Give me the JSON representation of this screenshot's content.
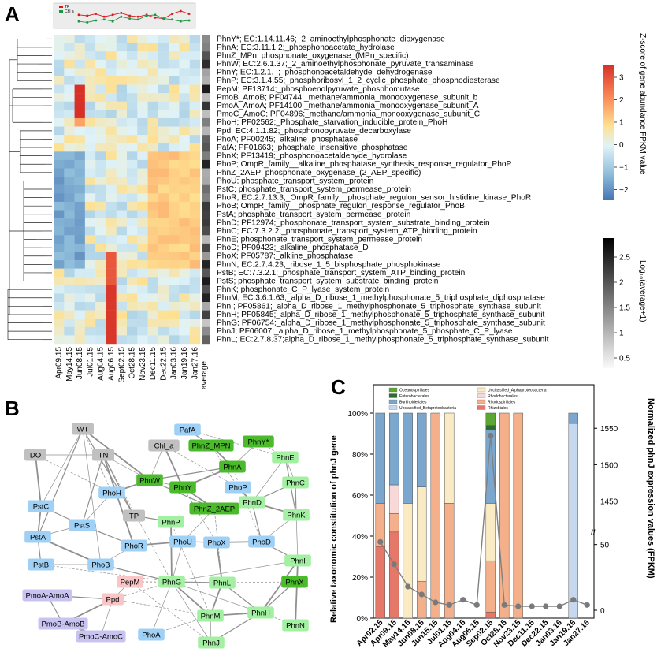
{
  "panels": {
    "a": "A",
    "b": "B",
    "c": "C"
  },
  "heatmap": {
    "months": [
      "Apr09.15",
      "May14.15",
      "Jun08.15",
      "Jul01.15",
      "Aug04.15",
      "Aug06.15",
      "Sept02.15",
      "Oct28.15",
      "Nov23.15",
      "Dec11.15",
      "Dec22.15",
      "Jan03.16",
      "Jan19.16",
      "Jan27.16"
    ],
    "avg_label": "average",
    "genes": [
      "PhnY*; EC:1.14.11.46;_2_aminoethylphosphonate_dioxygenase",
      "PhnA; EC:3.11.1.2;_phosphonoacetate_hydrolase",
      "PhnZ_MPn; phosphonate_oxygenase_(MPn_specific)",
      "PhnW; EC:2.6.1.37;_2_aminoethylphosphonate_pyruvate_transaminase",
      "PhnY; EC:1.2.1._;_phosphonoacetaldehyde_dehydrogenase",
      "PhnP; EC:3.1.4.55;_phosphoribosyl_1_2_cyclic_phosphate_phosphodiesterase",
      "PepM; PF13714;_phosphoenolpyruvate_phosphomutase",
      "PmoB_AmoB; PF04744;_methane/ammonia_monooxygenase_subunit_b",
      "PmoA_AmoA; PF14100;_methane/ammonia_monooxygenase_subunit_A",
      "PmoC_AmoC; PF04896;_methane/ammonia_monooxygenase_subunit_C",
      "PhoH; PF02562;_Phosphate_starvation_inducible_protein_PhoH",
      "Ppd; EC:4.1.1.82;_phosphonopyruvate_decarboxylase",
      "PhoA; PF00245;_alkaline_phosphatase",
      "PafA; PF01663;_phosphate_insensitive_phosphatase",
      "PhnX; PF13419;_phosphonoacetaldehyde_hydrolase",
      "PhoP; OmpR_family__alkaline_phosphatase_synthesis_response_regulator_PhoP",
      "PhnZ_2AEP; phosphonate_oxygenase_(2_AEP_specific)",
      "PhoU; phosphate_transport_system_protein",
      "PstC; phosphate_transport_system_permease_protein",
      "PhoR; EC:2.7.13.3;_OmpR_family__phosphate_regulon_sensor_histidine_kinase_PhoR",
      "PhoB; OmpR_family__phosphate_regulon_response_regulator_PhoB",
      "PstA; phosphate_transport_system_permease_protein",
      "PhnD; PF12974;_phosphonate_transport_system_substrate_binding_protein",
      "PhnC; EC:7.3.2.2;_phosphonate_transport_system_ATP_binding_protein",
      "PhnE; phosphonate_transport_system_permease_protein",
      "PhoD; PF09423;_alkaline_phosphatase_D",
      "PhoX; PF05787;_alkline_phosphatase",
      "PhnN; EC:2.7.4.23;_ribose_1_5_bisphosphate_phosphokinase",
      "PstB; EC:7.3.2.1;_phosphate_transport_system_ATP_binding_protein",
      "PstS; phosphate_transport_system_substrate_binding_protein",
      "PhnK; phosphonate_C_P_lyase_system_protein",
      "PhnM; EC:3.6.1.63;_alpha_D_ribose_1_methylphosphonate_5_triphosphate_diphosphatase",
      "PhnI; PF05861;_alpha_D_ribose_1_methylphosphonate_5_triphosphate_synthase_subunit",
      "PhnH; PF05845;_alpha_D_ribose_1_methylphosphonate_5_triphosphate_synthase_subunit",
      "PhnG; PF06754;_alpha_D_ribose_1_methylphosphonate_5_triphosphate_synthase_subunit",
      "PhnJ; PF06007;_alpha_D_ribose_1_methylphosphonate_5_phosphate_C_P_lyase",
      "PhnL; EC:2.7.8.37;alpha_D_ribose_1_methylphosphonate_5_triphosphate_synthase_subunit"
    ],
    "zscale": {
      "label": "Z-score of gene abundance FPKM value",
      "ticks": [
        "3",
        "2",
        "1",
        "0",
        "−1",
        "−2"
      ]
    },
    "avgscale": {
      "label": "Log₁₀(average+1)",
      "ticks": [
        "2.5",
        "2",
        "1.5",
        "1",
        "0.5"
      ]
    },
    "mini_legend": [
      "TP",
      "Chl a"
    ],
    "mini_tp": [
      0.55,
      0.5,
      0.6,
      0.45,
      0.55,
      0.65,
      0.5,
      0.45,
      0.55,
      0.4,
      0.35,
      0.6,
      0.75,
      0.6
    ],
    "mini_chl": [
      0.2,
      0.15,
      0.25,
      0.3,
      0.2,
      0.45,
      0.35,
      0.3,
      0.5,
      0.55,
      0.35,
      0.3,
      0.2,
      0.25
    ]
  },
  "network": {
    "nodes": [
      {
        "id": "WT",
        "color": "#c0c0c0"
      },
      {
        "id": "DO",
        "color": "#c0c0c0"
      },
      {
        "id": "TN",
        "color": "#c0c0c0"
      },
      {
        "id": "Chl_a",
        "color": "#c0c0c0"
      },
      {
        "id": "TP",
        "color": "#c0c0c0"
      },
      {
        "id": "PafA",
        "color": "#9fd0f5"
      },
      {
        "id": "PhnZ_MPN",
        "color": "#4bbb2b"
      },
      {
        "id": "PhnY*",
        "color": "#4bbb2b"
      },
      {
        "id": "PhnE",
        "color": "#a3f0a3"
      },
      {
        "id": "PhnA",
        "color": "#4bbb2b"
      },
      {
        "id": "PhnC",
        "color": "#a3f0a3"
      },
      {
        "id": "PhoH",
        "color": "#9fd0f5"
      },
      {
        "id": "PhnW",
        "color": "#4bbb2b"
      },
      {
        "id": "PhnY",
        "color": "#4bbb2b"
      },
      {
        "id": "PhoP",
        "color": "#9fd0f5"
      },
      {
        "id": "PhnD",
        "color": "#a3f0a3"
      },
      {
        "id": "PstC",
        "color": "#9fd0f5"
      },
      {
        "id": "PstS",
        "color": "#9fd0f5"
      },
      {
        "id": "PhnZ_2AEP",
        "color": "#4bbb2b"
      },
      {
        "id": "PhnK",
        "color": "#a3f0a3"
      },
      {
        "id": "PhnP",
        "color": "#a3f0a3"
      },
      {
        "id": "PstA",
        "color": "#9fd0f5"
      },
      {
        "id": "PhoR",
        "color": "#9fd0f5"
      },
      {
        "id": "PhoU",
        "color": "#9fd0f5"
      },
      {
        "id": "PhoX",
        "color": "#9fd0f5"
      },
      {
        "id": "PhoD",
        "color": "#9fd0f5"
      },
      {
        "id": "PstB",
        "color": "#9fd0f5"
      },
      {
        "id": "PhoB",
        "color": "#9fd0f5"
      },
      {
        "id": "PhnI",
        "color": "#a3f0a3"
      },
      {
        "id": "PepM",
        "color": "#f8c6c6"
      },
      {
        "id": "PmoA-AmoA",
        "color": "#c9c3f2"
      },
      {
        "id": "Ppd",
        "color": "#f8c6c6"
      },
      {
        "id": "PhnG",
        "color": "#a3f0a3"
      },
      {
        "id": "PhnL",
        "color": "#a3f0a3"
      },
      {
        "id": "PhnX",
        "color": "#4bbb2b"
      },
      {
        "id": "PmoB-AmoB",
        "color": "#c9c3f2"
      },
      {
        "id": "PhnM",
        "color": "#a3f0a3"
      },
      {
        "id": "PhnH",
        "color": "#a3f0a3"
      },
      {
        "id": "PmoC-AmoC",
        "color": "#c9c3f2"
      },
      {
        "id": "PhoA",
        "color": "#9fd0f5"
      },
      {
        "id": "PhnJ",
        "color": "#a3f0a3"
      },
      {
        "id": "PhnN",
        "color": "#a3f0a3"
      }
    ]
  },
  "chart_data": {
    "type": "bar",
    "categories": [
      "Apr02.15",
      "Apr09.15",
      "May14.15",
      "Jun08.15",
      "Jun15.15",
      "Jul01.15",
      "Aug04.15",
      "Aug06.15",
      "Sep02.15",
      "Oct28.15",
      "Nov23.15",
      "Dec11.15",
      "Dec22.15",
      "Jan03.16",
      "Jan19.16",
      "Jan27.16"
    ],
    "ylabel_left": "Relative taxonomic constitution of phnJ gene",
    "ylabel_right": "Normalized phnJ expression values (FPKM)",
    "yticks_left": [
      "0%",
      "20%",
      "40%",
      "60%",
      "80%",
      "100%"
    ],
    "yticks_right": [
      "0",
      "50",
      "1450",
      "1500",
      "1550"
    ],
    "legend": [
      {
        "name": "Oceanospirillales",
        "color": "#5aa832"
      },
      {
        "name": "Enterobacterales",
        "color": "#2f6b2f"
      },
      {
        "name": "Burkholderiales",
        "color": "#7ba7cf"
      },
      {
        "name": "Unclassified_Betaproteobacteria",
        "color": "#c6d7f0"
      },
      {
        "name": "Unclassified_Alphaproteobacteria",
        "color": "#faebc4"
      },
      {
        "name": "Rhodobacterales",
        "color": "#f9d8d8"
      },
      {
        "name": "Rhodospirillales",
        "color": "#f4b08b"
      },
      {
        "name": "Rhizobiales",
        "color": "#e6786a"
      }
    ],
    "stack_order": [
      "Rhizobiales",
      "Rhodospirillales",
      "Rhodobacterales",
      "Unclassified_Alphaproteobacteria",
      "Unclassified_Betaproteobacteria",
      "Burkholderiales",
      "Enterobacterales",
      "Oceanospirillales"
    ],
    "series": [
      {
        "name": "Rhizobiales",
        "values": [
          35,
          42,
          0,
          0,
          0,
          0,
          0,
          0,
          3,
          0,
          0,
          0,
          0,
          0,
          0,
          0
        ]
      },
      {
        "name": "Rhodospirillales",
        "values": [
          21,
          9,
          0,
          18,
          100,
          56,
          0,
          0,
          25,
          100,
          100,
          0,
          0,
          0,
          0,
          0
        ]
      },
      {
        "name": "Rhodobacterales",
        "values": [
          0,
          14,
          0,
          0,
          0,
          0,
          0,
          0,
          0,
          0,
          0,
          0,
          0,
          0,
          0,
          0
        ]
      },
      {
        "name": "Unclassified_Alphaproteobacteria",
        "values": [
          0,
          0,
          56,
          46,
          0,
          44,
          0,
          0,
          28,
          0,
          0,
          0,
          0,
          0,
          0,
          0
        ]
      },
      {
        "name": "Unclassified_Betaproteobacteria",
        "values": [
          0,
          0,
          0,
          0,
          0,
          0,
          0,
          0,
          0,
          0,
          0,
          0,
          0,
          0,
          95,
          0
        ]
      },
      {
        "name": "Burkholderiales",
        "values": [
          44,
          35,
          44,
          36,
          0,
          0,
          0,
          0,
          36,
          0,
          0,
          0,
          0,
          0,
          5,
          0
        ]
      },
      {
        "name": "Enterobacterales",
        "values": [
          0,
          0,
          0,
          0,
          0,
          0,
          0,
          0,
          2,
          0,
          0,
          0,
          0,
          0,
          0,
          0
        ]
      },
      {
        "name": "Oceanospirillales",
        "values": [
          0,
          0,
          0,
          0,
          0,
          0,
          0,
          0,
          6,
          0,
          0,
          0,
          0,
          0,
          0,
          0
        ]
      }
    ],
    "line": {
      "name": "phnJ FPKM",
      "values": [
        52,
        35,
        18,
        12,
        6,
        4,
        8,
        4,
        1540,
        4,
        3,
        3,
        3,
        3,
        8,
        4
      ]
    }
  }
}
